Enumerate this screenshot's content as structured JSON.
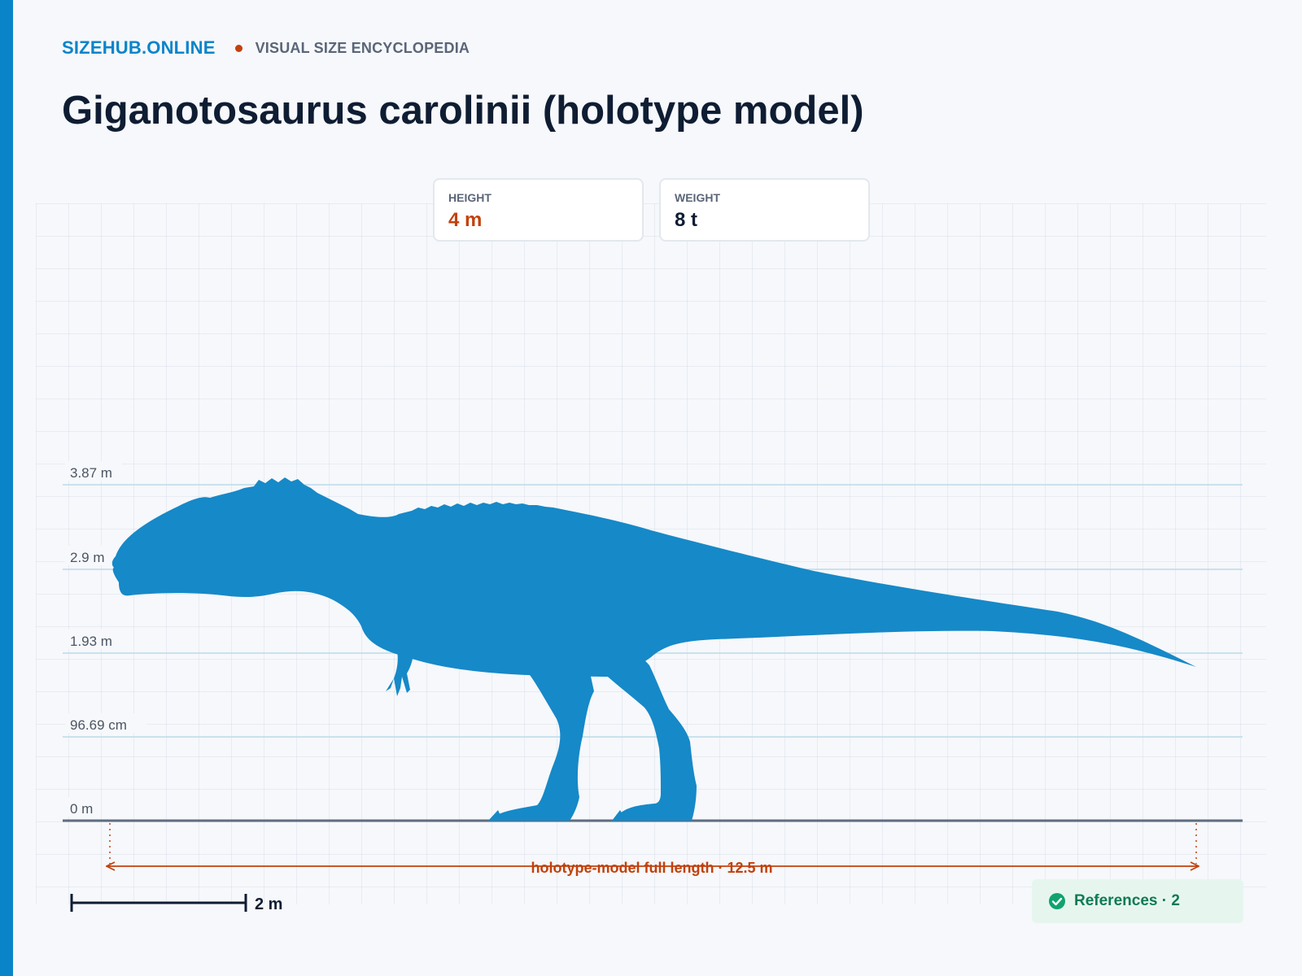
{
  "header": {
    "brand": "SIZEHUB.ONLINE",
    "tagline": "VISUAL SIZE ENCYCLOPEDIA",
    "title": "Giganotosaurus carolinii (holotype model)"
  },
  "stats": [
    {
      "label": "HEIGHT",
      "value": "4 m"
    },
    {
      "label": "WEIGHT",
      "value": "8 t"
    }
  ],
  "chart_data": {
    "type": "size-comparison",
    "subject": "Giganotosaurus carolinii (holotype model)",
    "height_m": 4,
    "length_m": 12.5,
    "y_ticks": [
      {
        "value_m": 0,
        "label": "0 m"
      },
      {
        "value_m": 0.9669,
        "label": "96.69 cm"
      },
      {
        "value_m": 1.93,
        "label": "1.93 m"
      },
      {
        "value_m": 2.9,
        "label": "2.9 m"
      },
      {
        "value_m": 3.87,
        "label": "3.87 m"
      }
    ],
    "length_label": "holotype-model full length · 12.5 m",
    "scale_bar": {
      "value_m": 2,
      "label": "2 m"
    }
  },
  "references": {
    "label": "References · 2"
  },
  "colors": {
    "accent": "#0a84c9",
    "silhouette": "#1689c8",
    "highlight": "#c2410c",
    "success": "#0f7a55"
  },
  "icons": {
    "references": "check-circle-icon"
  }
}
